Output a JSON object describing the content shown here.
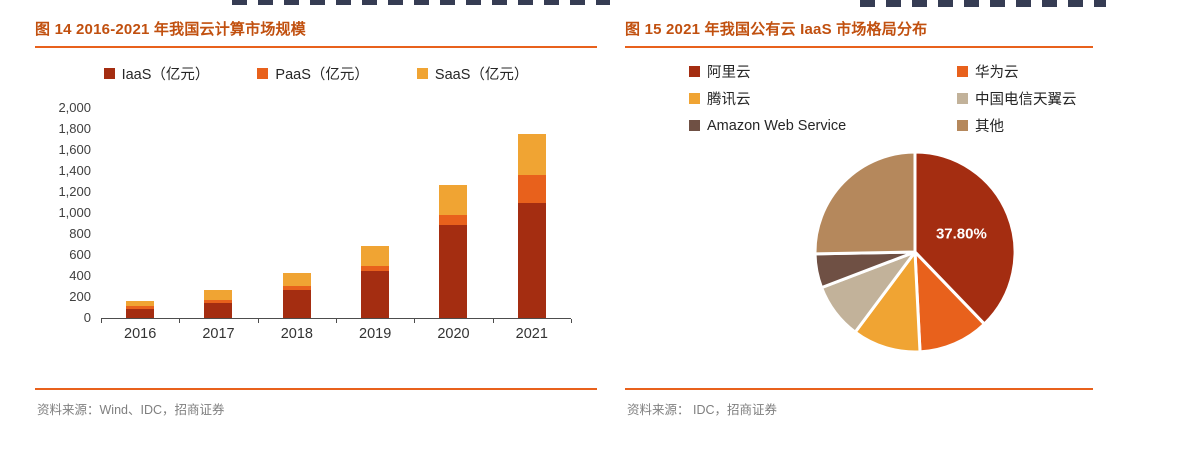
{
  "chart_data": [
    {
      "type": "bar",
      "stacked": true,
      "title": "图 14 2016-2021 年我国云计算市场规模",
      "categories": [
        "2016",
        "2017",
        "2018",
        "2019",
        "2020",
        "2021"
      ],
      "series": [
        {
          "key": "iaas",
          "name": "IaaS（亿元）",
          "color": "#A42D11",
          "values": [
            90,
            145,
            270,
            450,
            890,
            1100
          ]
        },
        {
          "key": "paas",
          "name": "PaaS（亿元）",
          "color": "#E8611C",
          "values": [
            25,
            30,
            35,
            50,
            90,
            260
          ]
        },
        {
          "key": "saas",
          "name": "SaaS（亿元）",
          "color": "#F0A433",
          "values": [
            50,
            90,
            125,
            190,
            290,
            390
          ]
        }
      ],
      "ylim": [
        0,
        2000
      ],
      "y_ticks": [
        0,
        200,
        400,
        600,
        800,
        1000,
        1200,
        1400,
        1600,
        1800,
        2000
      ],
      "grid": false,
      "legend_position": "top",
      "source": "资料来源：Wind、IDC，招商证券"
    },
    {
      "type": "pie",
      "title": "图 15 2021 年我国公有云 IaaS 市场格局分布",
      "slices": [
        {
          "key": "aliyun",
          "label": "阿里云",
          "value": 37.8,
          "color": "#A42D11",
          "data_label": "37.80%"
        },
        {
          "key": "huawei",
          "label": "华为云",
          "value": 11.4,
          "color": "#E8611C"
        },
        {
          "key": "tencent",
          "label": "腾讯云",
          "value": 11.0,
          "color": "#F0A433"
        },
        {
          "key": "telecom",
          "label": "中国电信天翼云",
          "value": 9.0,
          "color": "#C2B29A"
        },
        {
          "key": "aws",
          "label": "Amazon Web Service",
          "value": 5.5,
          "color": "#6F5044"
        },
        {
          "key": "other",
          "label": "其他",
          "value": 25.3,
          "color": "#B5885C"
        }
      ],
      "legend_position": "top",
      "source": "资料来源： IDC，招商证券"
    }
  ]
}
